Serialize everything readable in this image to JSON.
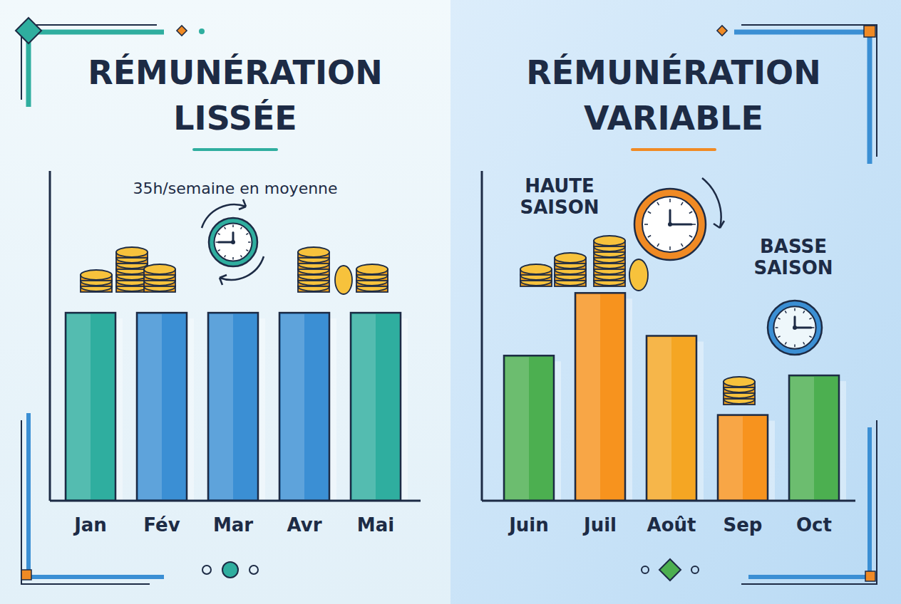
{
  "chart_data": [
    {
      "type": "bar",
      "title": "RÉMUNÉRATION LISSÉE",
      "subtitle": "35h/semaine en moyenne",
      "categories": [
        "Jan",
        "Fév",
        "Mar",
        "Avr",
        "Mai"
      ],
      "values": [
        57,
        57,
        57,
        57,
        57
      ],
      "colors": [
        "#2fae9f",
        "#3b8fd4",
        "#3b8fd4",
        "#3b8fd4",
        "#2fae9f"
      ],
      "ylim": [
        0,
        100
      ],
      "grid": false,
      "tick_labels": "x",
      "data_labels": false
    },
    {
      "type": "bar",
      "title": "RÉMUNÉRATION VARIABLE",
      "annotations": [
        "HAUTE SAISON",
        "BASSE SAISON"
      ],
      "categories": [
        "Juin",
        "Juil",
        "Août",
        "Sep",
        "Oct"
      ],
      "values": [
        44,
        63,
        50,
        26,
        38
      ],
      "colors": [
        "#4caf50",
        "#f7931e",
        "#f5a623",
        "#f7931e",
        "#4caf50"
      ],
      "ylim": [
        0,
        100
      ],
      "grid": false,
      "tick_labels": "x",
      "data_labels": false
    }
  ]
}
